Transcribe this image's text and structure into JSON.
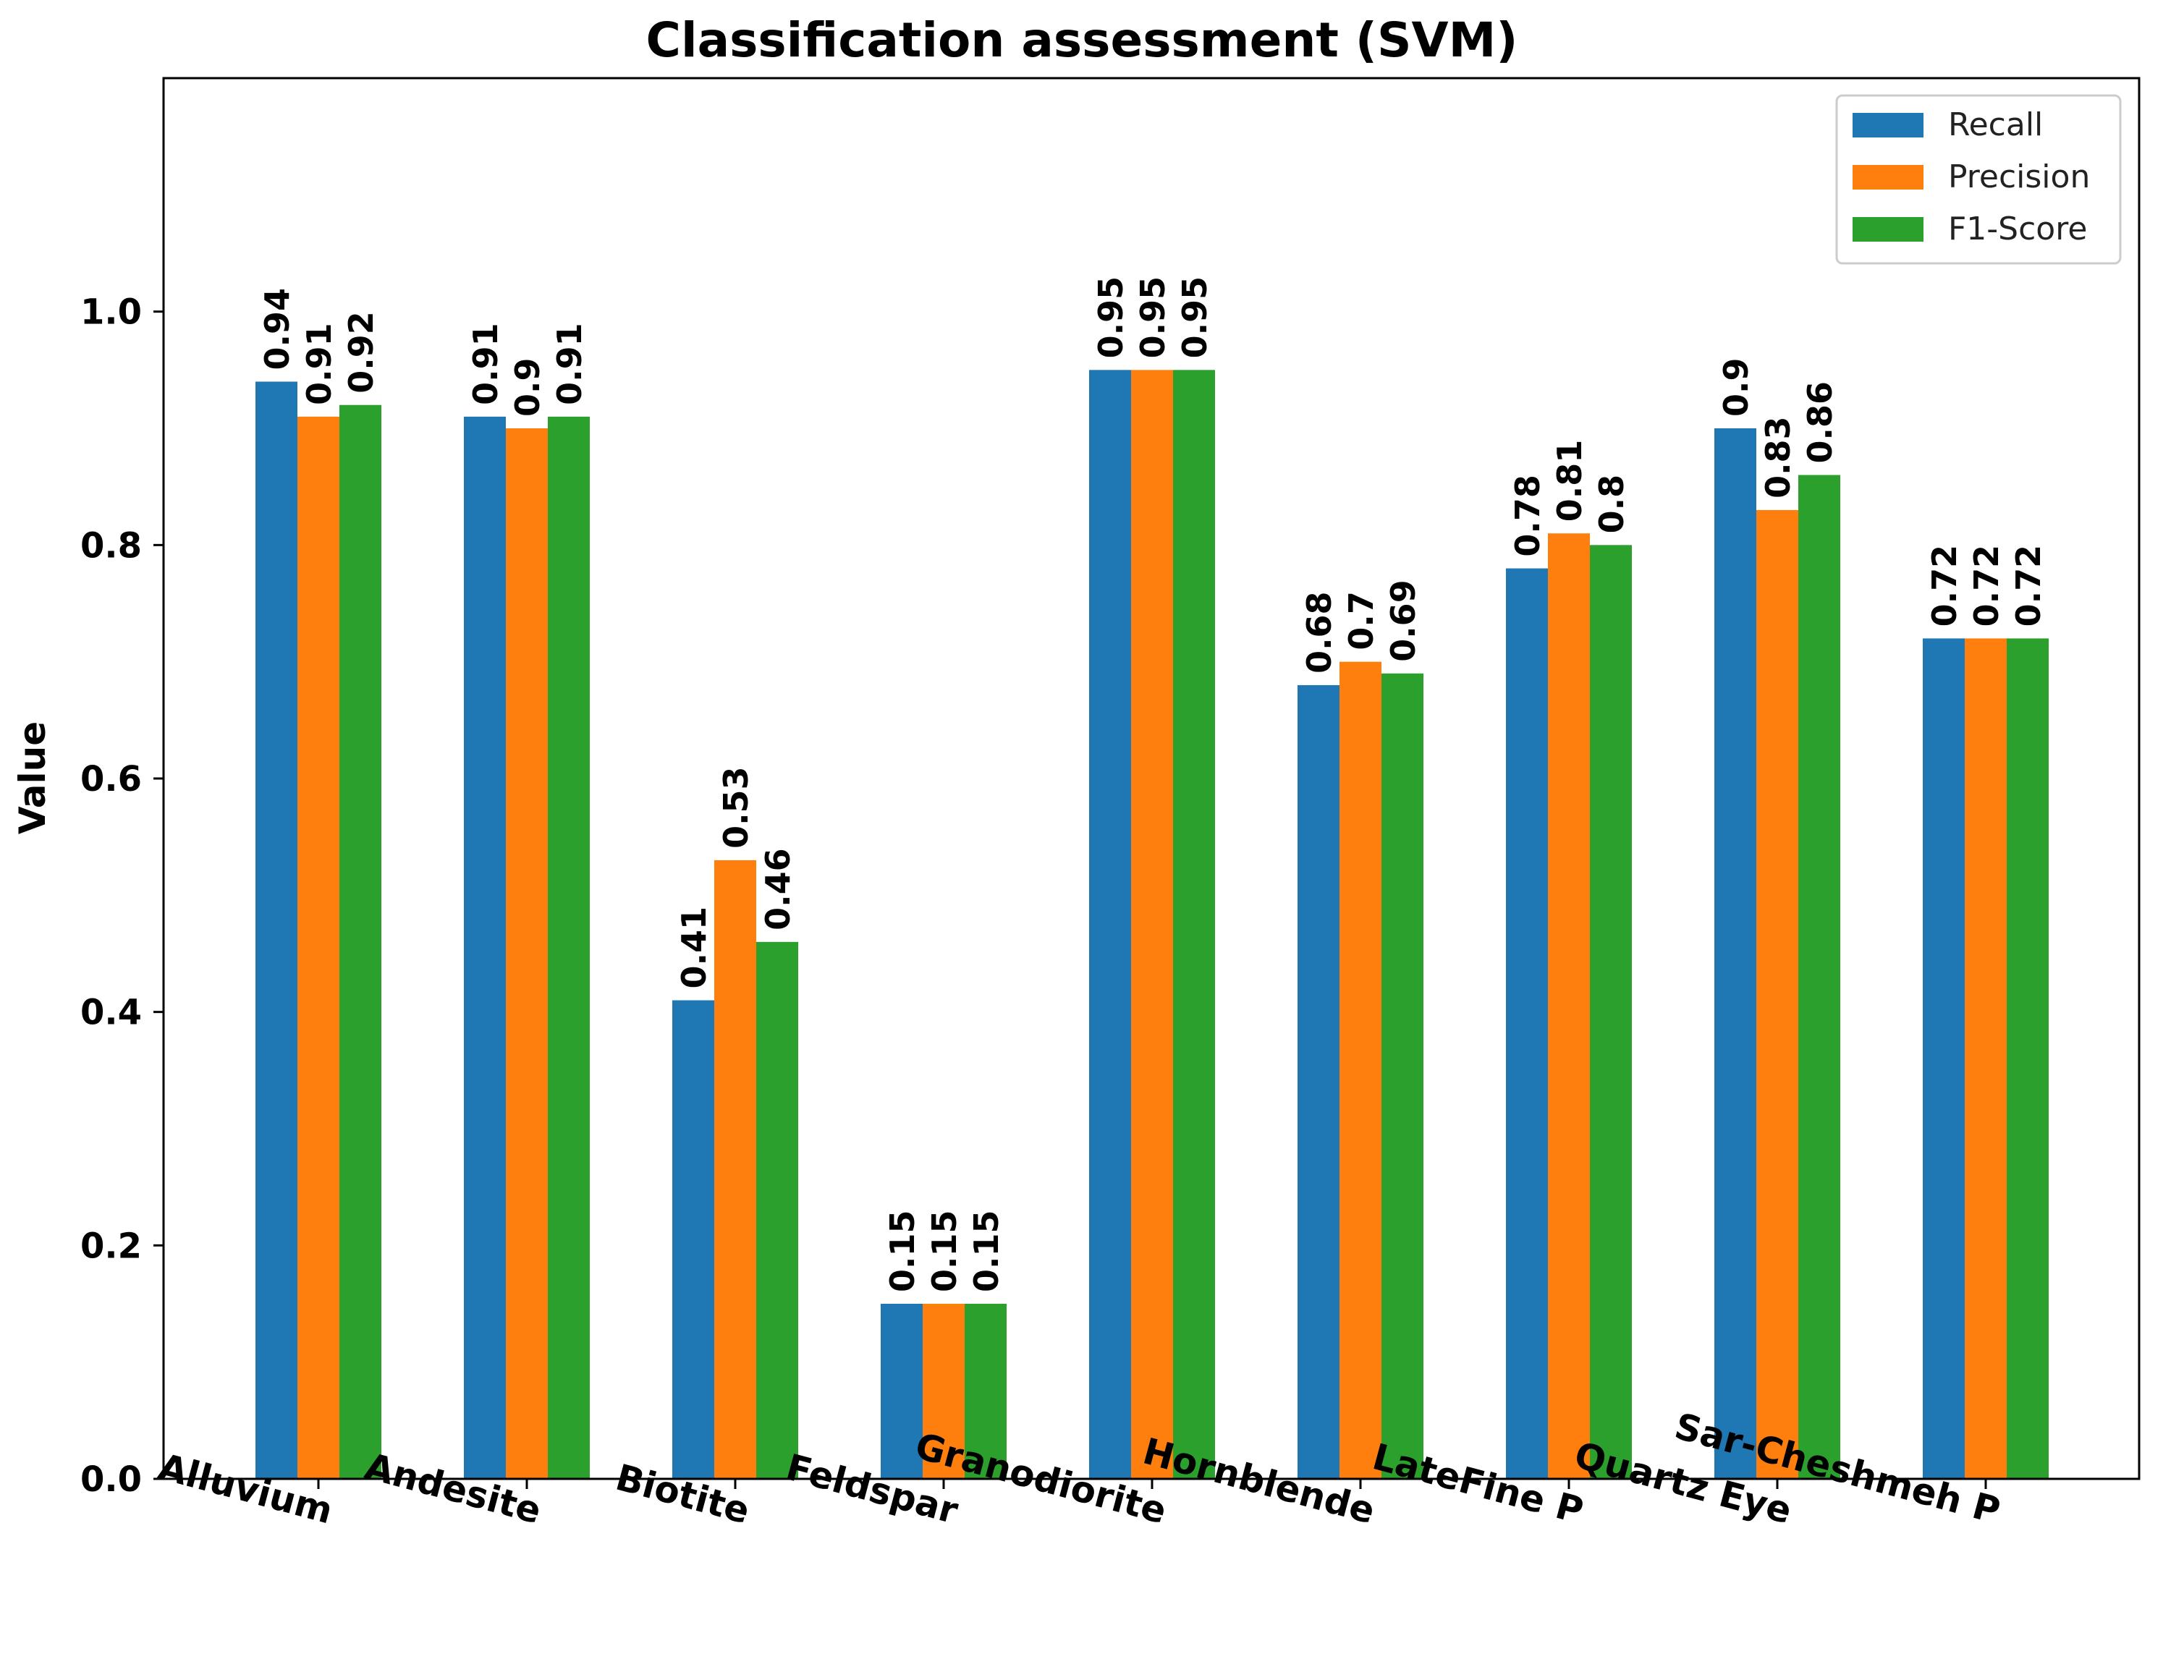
{
  "chart_data": {
    "type": "bar",
    "title": "Classification assessment (SVM)",
    "xlabel": "",
    "ylabel": "Value",
    "ylim": [
      0,
      1.2
    ],
    "yticks": [
      0.0,
      0.2,
      0.4,
      0.6,
      0.8,
      1.0
    ],
    "ytick_labels": [
      "0.0",
      "0.2",
      "0.4",
      "0.6",
      "0.8",
      "1.0"
    ],
    "categories": [
      "Alluvium",
      "Andesite",
      "Biotite",
      "Feldspar",
      "Granodiorite",
      "Hornblende",
      "LateFine P",
      "Quartz Eye",
      "Sar-Cheshmeh P"
    ],
    "series": [
      {
        "name": "Recall",
        "color": "#1f77b4",
        "values": [
          0.94,
          0.91,
          0.41,
          0.15,
          0.95,
          0.68,
          0.78,
          0.9,
          0.72
        ],
        "labels": [
          "0.94",
          "0.91",
          "0.41",
          "0.15",
          "0.95",
          "0.68",
          "0.78",
          "0.9",
          "0.72"
        ]
      },
      {
        "name": "Precision",
        "color": "#ff7f0e",
        "values": [
          0.91,
          0.9,
          0.53,
          0.15,
          0.95,
          0.7,
          0.81,
          0.83,
          0.72
        ],
        "labels": [
          "0.91",
          "0.9",
          "0.53",
          "0.15",
          "0.95",
          "0.7",
          "0.81",
          "0.83",
          "0.72"
        ]
      },
      {
        "name": "F1-Score",
        "color": "#2ca02c",
        "values": [
          0.92,
          0.91,
          0.46,
          0.15,
          0.95,
          0.69,
          0.8,
          0.86,
          0.72
        ],
        "labels": [
          "0.92",
          "0.91",
          "0.46",
          "0.15",
          "0.95",
          "0.69",
          "0.8",
          "0.86",
          "0.72"
        ]
      }
    ],
    "legend_position": "top-right",
    "grid": false
  }
}
